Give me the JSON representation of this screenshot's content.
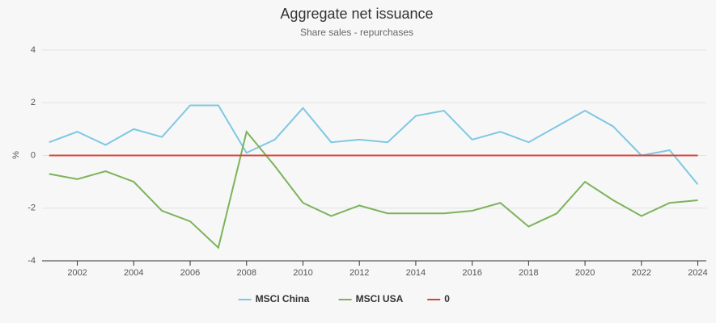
{
  "chart_data": {
    "type": "line",
    "title": "Aggregate net issuance",
    "subtitle": "Share sales - repurchases",
    "y_label": "%",
    "x": [
      2001,
      2002,
      2003,
      2004,
      2005,
      2006,
      2007,
      2008,
      2009,
      2010,
      2011,
      2012,
      2013,
      2014,
      2015,
      2016,
      2017,
      2018,
      2019,
      2020,
      2021,
      2022,
      2023,
      2024
    ],
    "series": [
      {
        "name": "MSCI China",
        "color": "#7ec8e3",
        "values": [
          0.5,
          0.9,
          0.4,
          1.0,
          0.7,
          1.9,
          1.9,
          0.1,
          0.6,
          1.8,
          0.5,
          0.6,
          0.5,
          1.5,
          1.7,
          0.6,
          0.9,
          0.5,
          1.1,
          1.7,
          1.1,
          0.0,
          0.2,
          -1.1
        ]
      },
      {
        "name": "MSCI USA",
        "color": "#7cb35b",
        "values": [
          -0.7,
          -0.9,
          -0.6,
          -1.0,
          -2.1,
          -2.5,
          -3.5,
          0.9,
          -0.4,
          -1.8,
          -2.3,
          -1.9,
          -2.2,
          -2.2,
          -2.2,
          -2.1,
          -1.8,
          -2.7,
          -2.2,
          -1.0,
          -1.7,
          -2.3,
          -1.8,
          -1.7
        ]
      },
      {
        "name": "0",
        "color": "#d9443a",
        "values": [
          0,
          0,
          0,
          0,
          0,
          0,
          0,
          0,
          0,
          0,
          0,
          0,
          0,
          0,
          0,
          0,
          0,
          0,
          0,
          0,
          0,
          0,
          0,
          0
        ]
      }
    ],
    "xlim": [
      2000.75,
      2024.3
    ],
    "xticks": [
      2002,
      2004,
      2006,
      2008,
      2010,
      2012,
      2014,
      2016,
      2018,
      2020,
      2022,
      2024
    ],
    "ylim": [
      -4,
      4
    ],
    "yticks": [
      -4,
      -2,
      0,
      2,
      4
    ],
    "grid": true,
    "legend": "bottom"
  }
}
